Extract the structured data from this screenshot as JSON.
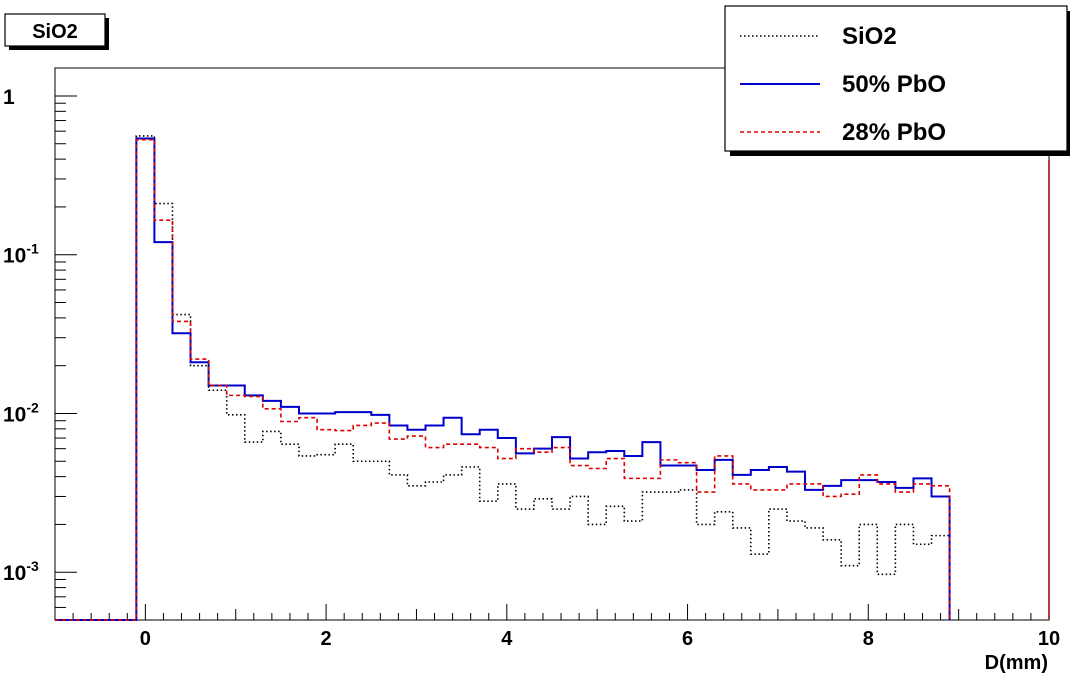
{
  "title_box": {
    "label": "SiO2"
  },
  "chart_data": {
    "type": "histogram",
    "title": "SiO2",
    "xlabel": "D(mm)",
    "ylabel": "",
    "xlim": [
      -1,
      10
    ],
    "ylim": [
      0.0005,
      1.5
    ],
    "yscale": "log",
    "grid": false,
    "legend_position": "top-right",
    "x_ticks": [
      {
        "value": 0,
        "label": "0"
      },
      {
        "value": 2,
        "label": "2"
      },
      {
        "value": 4,
        "label": "4"
      },
      {
        "value": 6,
        "label": "6"
      },
      {
        "value": 8,
        "label": "8"
      },
      {
        "value": 10,
        "label": "10"
      }
    ],
    "y_ticks": [
      {
        "value": 1,
        "base": "1",
        "exp": ""
      },
      {
        "value": 0.1,
        "base": "10",
        "exp": "-1"
      },
      {
        "value": 0.01,
        "base": "10",
        "exp": "-2"
      },
      {
        "value": 0.001,
        "base": "10",
        "exp": "-3"
      }
    ],
    "bin_edges_start": -0.1,
    "bin_width": 0.2,
    "series": [
      {
        "name": "SiO2",
        "color": "#000000",
        "style": "dotted",
        "values": [
          0.56,
          0.21,
          0.042,
          0.02,
          0.014,
          0.0098,
          0.0066,
          0.0077,
          0.0064,
          0.0054,
          0.0055,
          0.0064,
          0.005,
          0.005,
          0.0041,
          0.0035,
          0.0037,
          0.0041,
          0.0046,
          0.0028,
          0.0036,
          0.0025,
          0.0029,
          0.0025,
          0.003,
          0.002,
          0.0026,
          0.0021,
          0.0032,
          0.0032,
          0.0033,
          0.002,
          0.0024,
          0.0019,
          0.0013,
          0.0025,
          0.0021,
          0.0019,
          0.0016,
          0.0011,
          0.002,
          0.00097,
          0.002,
          0.0015,
          0.0017
        ]
      },
      {
        "name": "50% PbO",
        "color": "#0000cc",
        "style": "solid",
        "values": [
          0.54,
          0.12,
          0.032,
          0.021,
          0.015,
          0.015,
          0.013,
          0.012,
          0.011,
          0.01,
          0.01,
          0.0102,
          0.0102,
          0.0098,
          0.0084,
          0.0079,
          0.0084,
          0.0094,
          0.0074,
          0.0079,
          0.007,
          0.0056,
          0.006,
          0.0071,
          0.0052,
          0.0057,
          0.0058,
          0.0054,
          0.0066,
          0.0047,
          0.0047,
          0.0044,
          0.0051,
          0.0041,
          0.0044,
          0.0046,
          0.0043,
          0.0033,
          0.0035,
          0.0038,
          0.0038,
          0.0037,
          0.0034,
          0.0039,
          0.003
        ]
      },
      {
        "name": "28% PbO",
        "color": "#dd0000",
        "style": "dashed",
        "values": [
          0.53,
          0.165,
          0.038,
          0.022,
          0.015,
          0.013,
          0.0128,
          0.0107,
          0.0089,
          0.0094,
          0.0079,
          0.0078,
          0.0084,
          0.0087,
          0.0069,
          0.0072,
          0.0061,
          0.0064,
          0.0064,
          0.0061,
          0.0052,
          0.006,
          0.0057,
          0.0061,
          0.0047,
          0.0045,
          0.0052,
          0.0039,
          0.0039,
          0.0051,
          0.0049,
          0.0032,
          0.0054,
          0.0036,
          0.0033,
          0.0033,
          0.0036,
          0.0036,
          0.003,
          0.0031,
          0.0041,
          0.0036,
          0.0032,
          0.0036,
          0.0035
        ]
      }
    ]
  }
}
